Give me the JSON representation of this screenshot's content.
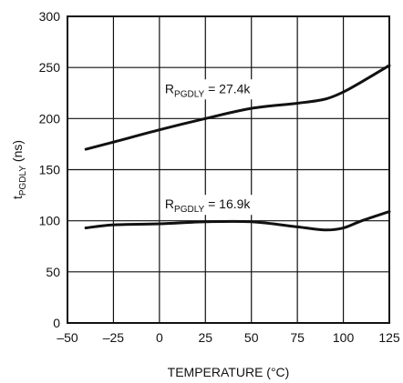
{
  "chart_data": {
    "type": "line",
    "xlabel": "TEMPERATURE (°C)",
    "ylabel_main": "t",
    "ylabel_sub": "PGDLY",
    "ylabel_unit": " (ns)",
    "xlim": [
      -50,
      125
    ],
    "ylim": [
      0,
      300
    ],
    "x_ticks": [
      -50,
      -25,
      0,
      25,
      50,
      75,
      100,
      125
    ],
    "y_ticks": [
      0,
      50,
      100,
      150,
      200,
      250,
      300
    ],
    "x_tick_labels": [
      "–50",
      "–25",
      "0",
      "25",
      "50",
      "75",
      "100",
      "125"
    ],
    "y_tick_labels": [
      "0",
      "50",
      "100",
      "150",
      "200",
      "250",
      "300"
    ],
    "grid": true,
    "series": [
      {
        "label_main": "R",
        "label_sub": "PGDLY",
        "label_value": " = 27.4k",
        "label_at": [
          3,
          225
        ],
        "x": [
          -40,
          -25,
          0,
          25,
          50,
          75,
          90,
          100,
          110,
          125
        ],
        "y": [
          170,
          177,
          189,
          200,
          210,
          215,
          219,
          226,
          236,
          252
        ]
      },
      {
        "label_main": "R",
        "label_sub": "PGDLY",
        "label_value": " = 16.9k",
        "label_at": [
          3,
          112
        ],
        "x": [
          -40,
          -25,
          0,
          25,
          50,
          75,
          90,
          100,
          110,
          125
        ],
        "y": [
          93,
          96,
          97,
          99,
          99,
          94,
          91,
          93,
          100,
          109
        ]
      }
    ],
    "colors": {
      "line": "#111111",
      "grid": "#111111"
    }
  }
}
